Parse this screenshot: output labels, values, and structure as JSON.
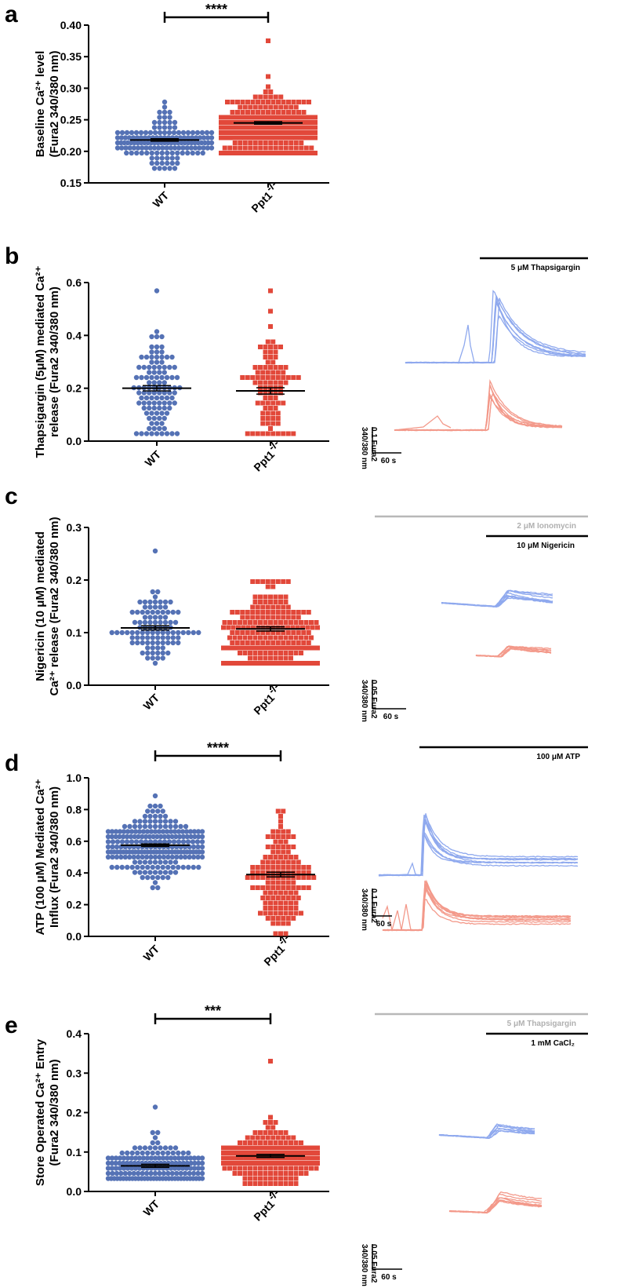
{
  "colors": {
    "wt": "#5572b5",
    "ko": "#e2483a",
    "wt_trace": "#8fa9ee",
    "ko_trace": "#f3998a",
    "grey": "#b8b8b8"
  },
  "chart_data": [
    {
      "panel": "a",
      "type": "scatter",
      "ylabel_line1": "Baseline Ca²⁺ level",
      "ylabel_line2": "(Fura2 340/380 nm)",
      "ylim": [
        0.15,
        0.4
      ],
      "yticks": [
        "0.40",
        "0.35",
        "0.30",
        "0.25",
        "0.20",
        "0.15"
      ],
      "ytick_values": [
        0.4,
        0.35,
        0.3,
        0.25,
        0.2,
        0.15
      ],
      "categories": [
        "WT",
        "Ppt1-/-"
      ],
      "series": [
        {
          "name": "WT",
          "mean": 0.218,
          "sem": 0.002,
          "n": 150,
          "min": 0.17,
          "max": 0.28,
          "center": 0.215,
          "spread": 0.02
        },
        {
          "name": "Ppt1-/-",
          "mean": 0.245,
          "sem": 0.002,
          "n": 260,
          "min": 0.195,
          "max": 0.375,
          "center": 0.24,
          "spread": 0.028
        }
      ],
      "significance": "****"
    },
    {
      "panel": "b",
      "type": "scatter",
      "ylabel_line1": "Thapsigargin (5μM) mediated Ca²⁺",
      "ylabel_line2": "release (Fura2 340/380 nm)",
      "ylim": [
        0.0,
        0.6
      ],
      "yticks": [
        "0.6",
        "0.4",
        "0.2",
        "0.0"
      ],
      "ytick_values": [
        0.6,
        0.4,
        0.2,
        0.0
      ],
      "categories": [
        "WT",
        "Ppt1-/-"
      ],
      "series": [
        {
          "name": "WT",
          "mean": 0.2,
          "sem": 0.01,
          "n": 110,
          "min": 0.02,
          "max": 0.57,
          "center": 0.2,
          "spread": 0.1
        },
        {
          "name": "Ppt1-/-",
          "mean": 0.19,
          "sem": 0.012,
          "n": 95,
          "min": 0.02,
          "max": 0.57,
          "center": 0.17,
          "spread": 0.12
        }
      ],
      "significance": "",
      "trace_label": "5 μM Thapsigargin",
      "scale_y": "0.1 Fura2",
      "scale_y2": "340/380 nm",
      "scale_x": "60 s"
    },
    {
      "panel": "c",
      "type": "scatter",
      "ylabel_line1": "Nigericin (10 μM) mediated",
      "ylabel_line2": "Ca²⁺ release (Fura2 340/380 nm)",
      "ylim": [
        0.0,
        0.3
      ],
      "yticks": [
        "0.3",
        "0.2",
        "0.1",
        "0.0"
      ],
      "ytick_values": [
        0.3,
        0.2,
        0.1,
        0.0
      ],
      "categories": [
        "WT",
        "Ppt1-/-"
      ],
      "series": [
        {
          "name": "WT",
          "mean": 0.109,
          "sem": 0.004,
          "n": 100,
          "min": 0.045,
          "max": 0.26,
          "center": 0.105,
          "spread": 0.03
        },
        {
          "name": "Ppt1-/-",
          "mean": 0.107,
          "sem": 0.004,
          "n": 220,
          "min": 0.04,
          "max": 0.2,
          "center": 0.1,
          "spread": 0.045
        }
      ],
      "significance": "",
      "trace_label_grey": "2 μM Ionomycin",
      "trace_label": "10 μM Nigericin",
      "scale_y": "0.05 Fura2",
      "scale_y2": "340/380 nm",
      "scale_x": "60 s"
    },
    {
      "panel": "d",
      "type": "scatter",
      "ylabel_line1": "ATP (100 μM) Mediated Ca²⁺",
      "ylabel_line2": "Influx (Fura2 340/380 nm)",
      "ylim": [
        0.0,
        1.0
      ],
      "yticks": [
        "1.0",
        "0.8",
        "0.6",
        "0.4",
        "0.2",
        "0.0"
      ],
      "ytick_values": [
        1.0,
        0.8,
        0.6,
        0.4,
        0.2,
        0.0
      ],
      "categories": [
        "WT",
        "Ppt1-/-"
      ],
      "series": [
        {
          "name": "WT",
          "mean": 0.575,
          "sem": 0.008,
          "n": 230,
          "min": 0.3,
          "max": 0.9,
          "center": 0.57,
          "spread": 0.1
        },
        {
          "name": "Ppt1-/-",
          "mean": 0.39,
          "sem": 0.015,
          "n": 150,
          "min": 0.03,
          "max": 0.78,
          "center": 0.38,
          "spread": 0.18
        }
      ],
      "significance": "****",
      "trace_label": "100 μM ATP",
      "scale_y": "0.1 Fura2",
      "scale_y2": "340/380 nm",
      "scale_x": "60 s"
    },
    {
      "panel": "e",
      "type": "scatter",
      "ylabel_line1": "Store Operated Ca²⁺ Entry",
      "ylabel_line2": "(Fura2 340/380 nm)",
      "ylim": [
        0.0,
        0.4
      ],
      "yticks": [
        "0.4",
        "0.3",
        "0.2",
        "0.1",
        "0.0"
      ],
      "ytick_values": [
        0.4,
        0.3,
        0.2,
        0.1,
        0.0
      ],
      "categories": [
        "WT",
        "Ppt1-/-"
      ],
      "series": [
        {
          "name": "WT",
          "mean": 0.065,
          "sem": 0.004,
          "n": 160,
          "min": 0.03,
          "max": 0.21,
          "center": 0.06,
          "spread": 0.03
        },
        {
          "name": "Ppt1-/-",
          "mean": 0.09,
          "sem": 0.004,
          "n": 190,
          "min": 0.02,
          "max": 0.33,
          "center": 0.085,
          "spread": 0.04
        }
      ],
      "significance": "***",
      "trace_label_grey": "5 μM Thapsigargin",
      "trace_label": "1 mM CaCl₂",
      "scale_y": "0.05 Fura2",
      "scale_y2": "340/380 nm",
      "scale_x": "60 s"
    }
  ]
}
